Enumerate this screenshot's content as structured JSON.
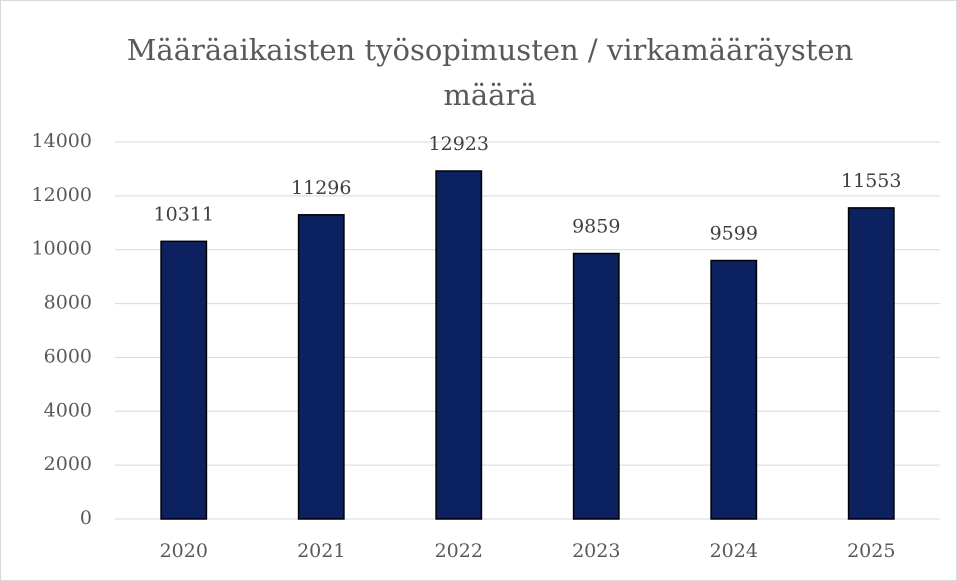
{
  "chart_data": {
    "type": "bar",
    "title": "Määräaikaisten työsopimusten / virkamääräysten määrä",
    "categories": [
      "2020",
      "2021",
      "2022",
      "2023",
      "2024",
      "2025"
    ],
    "values": [
      10311,
      11296,
      12923,
      9859,
      9599,
      11553
    ],
    "color": "#0b2160",
    "ylim": [
      0,
      14000
    ],
    "yticks": [
      0,
      2000,
      4000,
      6000,
      8000,
      10000,
      12000,
      14000
    ],
    "grid": true
  }
}
